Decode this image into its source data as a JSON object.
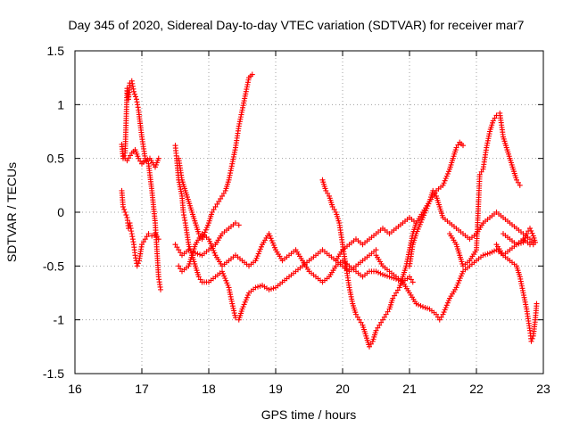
{
  "chart_data": {
    "type": "scatter",
    "title": "Day 345 of 2020, Sidereal Day-to-day VTEC variation (SDTVAR) for receiver mar7",
    "xlabel": "GPS time / hours",
    "ylabel": "SDTVAR / TECUs",
    "xlim": [
      16,
      23
    ],
    "ylim": [
      -1.5,
      1.5
    ],
    "xticks": [
      16,
      17,
      18,
      19,
      20,
      21,
      22,
      23
    ],
    "xtick_labels": [
      "16",
      "17",
      "18",
      "19",
      "20",
      "21",
      "22",
      "23"
    ],
    "yticks": [
      -1.5,
      -1,
      -0.5,
      0,
      0.5,
      1,
      1.5
    ],
    "ytick_labels": [
      "-1.5",
      "-1",
      "-0.5",
      "0",
      "0.5",
      "1",
      "1.5"
    ],
    "grid": true,
    "marker": "+",
    "color": "#ff0000",
    "series": [
      {
        "name": "track-a",
        "points": [
          [
            16.7,
            0.63
          ],
          [
            16.72,
            0.5
          ],
          [
            16.75,
            0.55
          ],
          [
            16.78,
            1.15
          ],
          [
            16.8,
            1.05
          ],
          [
            16.82,
            1.2
          ],
          [
            16.85,
            1.22
          ],
          [
            16.88,
            1.12
          ],
          [
            16.92,
            1.05
          ],
          [
            16.95,
            0.95
          ],
          [
            17.0,
            0.7
          ],
          [
            17.05,
            0.5
          ],
          [
            17.1,
            0.45
          ],
          [
            17.15,
            0.2
          ],
          [
            17.2,
            -0.1
          ],
          [
            17.22,
            -0.3
          ],
          [
            17.25,
            -0.6
          ],
          [
            17.28,
            -0.72
          ]
        ]
      },
      {
        "name": "track-b",
        "points": [
          [
            16.72,
            0.52
          ],
          [
            16.78,
            0.48
          ],
          [
            16.85,
            0.55
          ],
          [
            16.9,
            0.58
          ],
          [
            16.95,
            0.5
          ],
          [
            17.0,
            0.45
          ],
          [
            17.05,
            0.48
          ],
          [
            17.12,
            0.5
          ],
          [
            17.2,
            0.42
          ],
          [
            17.25,
            0.5
          ]
        ]
      },
      {
        "name": "track-c",
        "points": [
          [
            16.7,
            0.2
          ],
          [
            16.72,
            0.05
          ],
          [
            16.75,
            0.0
          ],
          [
            16.78,
            -0.05
          ],
          [
            16.8,
            -0.15
          ],
          [
            16.82,
            -0.1
          ],
          [
            16.85,
            -0.2
          ],
          [
            16.88,
            -0.3
          ],
          [
            16.9,
            -0.4
          ],
          [
            16.93,
            -0.5
          ],
          [
            16.96,
            -0.45
          ],
          [
            17.0,
            -0.3
          ],
          [
            17.05,
            -0.25
          ],
          [
            17.1,
            -0.2
          ],
          [
            17.15,
            -0.22
          ],
          [
            17.2,
            -0.2
          ],
          [
            17.25,
            -0.25
          ]
        ]
      },
      {
        "name": "track-d",
        "points": [
          [
            17.5,
            0.62
          ],
          [
            17.52,
            0.5
          ],
          [
            17.55,
            0.3
          ],
          [
            17.6,
            0.15
          ],
          [
            17.62,
            0.0
          ],
          [
            17.65,
            -0.1
          ],
          [
            17.7,
            -0.3
          ],
          [
            17.75,
            -0.4
          ],
          [
            17.8,
            -0.5
          ],
          [
            17.85,
            -0.6
          ],
          [
            17.9,
            -0.65
          ],
          [
            18.0,
            -0.65
          ],
          [
            18.1,
            -0.6
          ],
          [
            18.2,
            -0.55
          ],
          [
            18.3,
            -0.7
          ],
          [
            18.35,
            -0.85
          ],
          [
            18.4,
            -0.98
          ],
          [
            18.45,
            -1.0
          ],
          [
            18.5,
            -0.9
          ],
          [
            18.6,
            -0.75
          ],
          [
            18.7,
            -0.7
          ],
          [
            18.8,
            -0.68
          ],
          [
            18.9,
            -0.72
          ],
          [
            19.0,
            -0.7
          ],
          [
            19.1,
            -0.65
          ],
          [
            19.2,
            -0.6
          ],
          [
            19.3,
            -0.55
          ],
          [
            19.4,
            -0.5
          ],
          [
            19.5,
            -0.45
          ],
          [
            19.6,
            -0.4
          ],
          [
            19.7,
            -0.35
          ],
          [
            19.8,
            -0.4
          ],
          [
            19.9,
            -0.45
          ],
          [
            20.0,
            -0.5
          ],
          [
            20.1,
            -0.55
          ],
          [
            20.2,
            -0.5
          ],
          [
            20.3,
            -0.45
          ],
          [
            20.4,
            -0.4
          ],
          [
            20.5,
            -0.35
          ]
        ]
      },
      {
        "name": "track-e",
        "points": [
          [
            17.55,
            0.5
          ],
          [
            17.6,
            0.3
          ],
          [
            17.65,
            0.2
          ],
          [
            17.7,
            0.1
          ],
          [
            17.75,
            0.0
          ],
          [
            17.8,
            -0.1
          ],
          [
            17.85,
            -0.2
          ],
          [
            17.9,
            -0.25
          ],
          [
            18.0,
            -0.1
          ],
          [
            18.05,
            0.0
          ],
          [
            18.1,
            0.05
          ],
          [
            18.15,
            0.1
          ],
          [
            18.2,
            0.15
          ],
          [
            18.25,
            0.2
          ],
          [
            18.3,
            0.3
          ],
          [
            18.35,
            0.45
          ],
          [
            18.4,
            0.6
          ],
          [
            18.45,
            0.8
          ],
          [
            18.5,
            0.95
          ],
          [
            18.55,
            1.1
          ],
          [
            18.6,
            1.25
          ],
          [
            18.65,
            1.28
          ]
        ]
      },
      {
        "name": "track-f",
        "points": [
          [
            17.5,
            -0.3
          ],
          [
            17.55,
            -0.35
          ],
          [
            17.6,
            -0.4
          ],
          [
            17.7,
            -0.35
          ],
          [
            17.8,
            -0.38
          ],
          [
            17.9,
            -0.4
          ],
          [
            18.0,
            -0.35
          ],
          [
            18.1,
            -0.3
          ],
          [
            18.2,
            -0.2
          ],
          [
            18.3,
            -0.15
          ],
          [
            18.4,
            -0.1
          ],
          [
            18.45,
            -0.12
          ]
        ]
      },
      {
        "name": "track-g",
        "points": [
          [
            17.55,
            -0.5
          ],
          [
            17.6,
            -0.55
          ],
          [
            17.7,
            -0.5
          ],
          [
            17.8,
            -0.3
          ],
          [
            17.9,
            -0.2
          ],
          [
            18.0,
            -0.25
          ],
          [
            18.1,
            -0.4
          ],
          [
            18.2,
            -0.5
          ],
          [
            18.3,
            -0.45
          ],
          [
            18.4,
            -0.4
          ],
          [
            18.5,
            -0.45
          ],
          [
            18.6,
            -0.5
          ],
          [
            18.7,
            -0.45
          ],
          [
            18.8,
            -0.3
          ],
          [
            18.9,
            -0.2
          ],
          [
            19.0,
            -0.35
          ],
          [
            19.1,
            -0.45
          ],
          [
            19.2,
            -0.4
          ],
          [
            19.3,
            -0.35
          ],
          [
            19.4,
            -0.45
          ],
          [
            19.5,
            -0.55
          ],
          [
            19.6,
            -0.6
          ],
          [
            19.7,
            -0.65
          ],
          [
            19.8,
            -0.6
          ],
          [
            19.9,
            -0.5
          ],
          [
            20.0,
            -0.45
          ],
          [
            20.1,
            -0.5
          ],
          [
            20.2,
            -0.55
          ],
          [
            20.3,
            -0.6
          ],
          [
            20.4,
            -0.55
          ],
          [
            20.5,
            -0.55
          ],
          [
            20.6,
            -0.58
          ],
          [
            20.7,
            -0.6
          ],
          [
            20.8,
            -0.62
          ],
          [
            20.9,
            -0.65
          ],
          [
            21.0,
            -0.6
          ],
          [
            21.05,
            -0.65
          ]
        ]
      },
      {
        "name": "track-h",
        "points": [
          [
            19.7,
            0.3
          ],
          [
            19.75,
            0.2
          ],
          [
            19.8,
            0.15
          ],
          [
            19.85,
            0.05
          ],
          [
            19.9,
            0.0
          ],
          [
            19.95,
            -0.1
          ],
          [
            20.0,
            -0.3
          ],
          [
            20.05,
            -0.5
          ],
          [
            20.1,
            -0.7
          ],
          [
            20.15,
            -0.85
          ],
          [
            20.2,
            -0.95
          ],
          [
            20.25,
            -1.0
          ],
          [
            20.3,
            -1.05
          ],
          [
            20.35,
            -1.15
          ],
          [
            20.4,
            -1.25
          ],
          [
            20.45,
            -1.2
          ],
          [
            20.5,
            -1.1
          ],
          [
            20.55,
            -1.05
          ],
          [
            20.6,
            -1.0
          ],
          [
            20.65,
            -0.95
          ],
          [
            20.7,
            -0.9
          ],
          [
            20.75,
            -0.8
          ],
          [
            20.8,
            -0.75
          ],
          [
            20.85,
            -0.7
          ],
          [
            20.9,
            -0.6
          ],
          [
            20.95,
            -0.5
          ],
          [
            21.0,
            -0.35
          ],
          [
            21.05,
            -0.2
          ],
          [
            21.1,
            -0.1
          ]
        ]
      },
      {
        "name": "track-i",
        "points": [
          [
            19.9,
            -0.45
          ],
          [
            20.0,
            -0.35
          ],
          [
            20.1,
            -0.3
          ],
          [
            20.2,
            -0.25
          ],
          [
            20.3,
            -0.3
          ],
          [
            20.4,
            -0.25
          ],
          [
            20.5,
            -0.2
          ],
          [
            20.6,
            -0.15
          ],
          [
            20.7,
            -0.2
          ],
          [
            20.8,
            -0.15
          ],
          [
            20.9,
            -0.1
          ],
          [
            21.0,
            -0.05
          ],
          [
            21.1,
            -0.1
          ],
          [
            21.2,
            0.0
          ],
          [
            21.3,
            0.1
          ],
          [
            21.35,
            0.2
          ],
          [
            21.4,
            0.15
          ],
          [
            21.45,
            0.05
          ],
          [
            21.5,
            -0.05
          ],
          [
            21.6,
            -0.1
          ],
          [
            21.7,
            -0.15
          ],
          [
            21.8,
            -0.2
          ],
          [
            21.9,
            -0.25
          ],
          [
            22.0,
            -0.2
          ],
          [
            22.1,
            -0.1
          ],
          [
            22.2,
            -0.05
          ],
          [
            22.3,
            0.0
          ],
          [
            22.4,
            -0.05
          ],
          [
            22.5,
            -0.1
          ],
          [
            22.6,
            -0.15
          ],
          [
            22.7,
            -0.2
          ],
          [
            22.8,
            -0.25
          ],
          [
            22.85,
            -0.3
          ]
        ]
      },
      {
        "name": "track-j",
        "points": [
          [
            20.5,
            -0.4
          ],
          [
            20.6,
            -0.5
          ],
          [
            20.7,
            -0.55
          ],
          [
            20.8,
            -0.6
          ],
          [
            20.9,
            -0.65
          ],
          [
            21.0,
            -0.75
          ],
          [
            21.1,
            -0.85
          ],
          [
            21.2,
            -0.88
          ],
          [
            21.3,
            -0.9
          ],
          [
            21.4,
            -0.95
          ],
          [
            21.45,
            -1.0
          ],
          [
            21.5,
            -0.95
          ],
          [
            21.6,
            -0.8
          ],
          [
            21.7,
            -0.7
          ],
          [
            21.8,
            -0.55
          ],
          [
            21.9,
            -0.5
          ],
          [
            22.0,
            -0.45
          ],
          [
            22.1,
            -0.4
          ],
          [
            22.2,
            -0.38
          ],
          [
            22.3,
            -0.35
          ],
          [
            22.4,
            -0.4
          ],
          [
            22.5,
            -0.35
          ],
          [
            22.6,
            -0.3
          ],
          [
            22.7,
            -0.25
          ],
          [
            22.8,
            -0.3
          ],
          [
            22.85,
            -0.28
          ]
        ]
      },
      {
        "name": "track-k",
        "points": [
          [
            21.0,
            -0.5
          ],
          [
            21.05,
            -0.3
          ],
          [
            21.1,
            -0.2
          ],
          [
            21.2,
            -0.05
          ],
          [
            21.3,
            0.1
          ],
          [
            21.4,
            0.2
          ],
          [
            21.5,
            0.25
          ],
          [
            21.6,
            0.4
          ],
          [
            21.65,
            0.5
          ],
          [
            21.7,
            0.6
          ],
          [
            21.75,
            0.65
          ],
          [
            21.8,
            0.62
          ]
        ]
      },
      {
        "name": "track-l",
        "points": [
          [
            21.6,
            -0.2
          ],
          [
            21.7,
            -0.3
          ],
          [
            21.8,
            -0.5
          ],
          [
            21.9,
            -0.45
          ],
          [
            22.0,
            -0.35
          ],
          [
            22.05,
            0.35
          ],
          [
            22.1,
            0.4
          ],
          [
            22.15,
            0.6
          ],
          [
            22.2,
            0.75
          ],
          [
            22.25,
            0.85
          ],
          [
            22.3,
            0.9
          ],
          [
            22.35,
            0.92
          ],
          [
            22.4,
            0.7
          ],
          [
            22.45,
            0.6
          ],
          [
            22.5,
            0.5
          ],
          [
            22.55,
            0.4
          ],
          [
            22.6,
            0.3
          ],
          [
            22.65,
            0.25
          ]
        ]
      },
      {
        "name": "track-m",
        "points": [
          [
            22.3,
            -0.3
          ],
          [
            22.4,
            -0.4
          ],
          [
            22.5,
            -0.45
          ],
          [
            22.6,
            -0.5
          ],
          [
            22.65,
            -0.6
          ],
          [
            22.7,
            -0.75
          ],
          [
            22.75,
            -0.9
          ],
          [
            22.8,
            -1.1
          ],
          [
            22.82,
            -1.2
          ],
          [
            22.85,
            -1.15
          ],
          [
            22.88,
            -1.0
          ],
          [
            22.9,
            -0.85
          ]
        ]
      },
      {
        "name": "track-n",
        "points": [
          [
            22.4,
            -0.2
          ],
          [
            22.5,
            -0.25
          ],
          [
            22.6,
            -0.3
          ],
          [
            22.7,
            -0.28
          ],
          [
            22.75,
            -0.2
          ],
          [
            22.8,
            -0.15
          ],
          [
            22.85,
            -0.22
          ],
          [
            22.88,
            -0.28
          ]
        ]
      }
    ]
  }
}
